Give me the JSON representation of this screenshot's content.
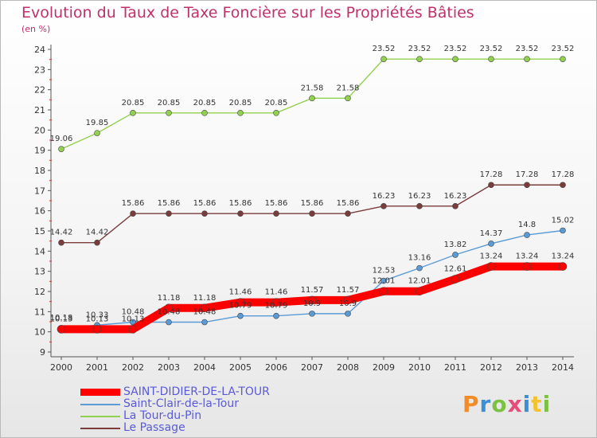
{
  "title": "Evolution du Taux de Taxe Foncière sur les Propriétés Bâties",
  "unit_label": "(en %)",
  "logo": {
    "text": "Proxiti",
    "colors": [
      "#f28c28",
      "#3a8fd6",
      "#7cc242",
      "#e84a7a",
      "#3a8fd6",
      "#f2c230",
      "#7cc242"
    ]
  },
  "chart_data": {
    "type": "line",
    "title": "Evolution du Taux de Taxe Foncière sur les Propriétés Bâties",
    "ylabel": "(en %)",
    "xlabel": "",
    "x": [
      "2000",
      "2001",
      "2002",
      "2003",
      "2004",
      "2005",
      "2006",
      "2007",
      "2008",
      "2009",
      "2010",
      "2011",
      "2012",
      "2013",
      "2014"
    ],
    "ylim": [
      9,
      24
    ],
    "yticks": [
      "9",
      "10",
      "11",
      "12",
      "13",
      "14",
      "15",
      "16",
      "17",
      "18",
      "19",
      "20",
      "21",
      "22",
      "23",
      "24"
    ],
    "grid": false,
    "legend_position": "bottom-left",
    "series": [
      {
        "name": "SAINT-DIDIER-DE-LA-TOUR",
        "color": "#ff0000",
        "width": 10,
        "values": [
          10.13,
          10.13,
          10.13,
          11.18,
          11.18,
          11.46,
          11.46,
          11.57,
          11.57,
          12.01,
          12.01,
          12.61,
          13.24,
          13.24,
          13.24
        ],
        "labels": [
          "10.13",
          "10.13",
          "10.13",
          "11.18",
          "11.18",
          "11.46",
          "11.46",
          "11.57",
          "11.57",
          "12.01",
          "12.01",
          "12.61",
          "13.24",
          "13.24",
          "13.24"
        ]
      },
      {
        "name": "Saint-Clair-de-la-Tour",
        "color": "#5b9bd5",
        "width": 1.4,
        "values": [
          10.18,
          10.33,
          10.48,
          10.48,
          10.48,
          10.79,
          10.79,
          10.9,
          10.9,
          12.53,
          13.16,
          13.82,
          14.37,
          14.8,
          15.02
        ],
        "labels": [
          "10.18",
          "10.33",
          "10.48",
          "10.48",
          "10.48",
          "10.79",
          "10.79",
          "10.9",
          "10.9",
          "12.53",
          "13.16",
          "13.82",
          "14.37",
          "14.8",
          "15.02"
        ]
      },
      {
        "name": "La Tour-du-Pin",
        "color": "#92d050",
        "width": 1.4,
        "values": [
          19.06,
          19.85,
          20.85,
          20.85,
          20.85,
          20.85,
          20.85,
          21.58,
          21.58,
          23.52,
          23.52,
          23.52,
          23.52,
          23.52,
          23.52
        ],
        "labels": [
          "19.06",
          "19.85",
          "20.85",
          "20.85",
          "20.85",
          "20.85",
          "20.85",
          "21.58",
          "21.58",
          "23.52",
          "23.52",
          "23.52",
          "23.52",
          "23.52",
          "23.52"
        ]
      },
      {
        "name": "Le Passage",
        "color": "#7b3c3c",
        "width": 1.4,
        "values": [
          14.42,
          14.42,
          15.86,
          15.86,
          15.86,
          15.86,
          15.86,
          15.86,
          15.86,
          16.23,
          16.23,
          16.23,
          17.28,
          17.28,
          17.28
        ],
        "labels": [
          "14.42",
          "14.42",
          "15.86",
          "15.86",
          "15.86",
          "15.86",
          "15.86",
          "15.86",
          "15.86",
          "16.23",
          "16.23",
          "16.23",
          "17.28",
          "17.28",
          "17.28"
        ]
      }
    ]
  }
}
